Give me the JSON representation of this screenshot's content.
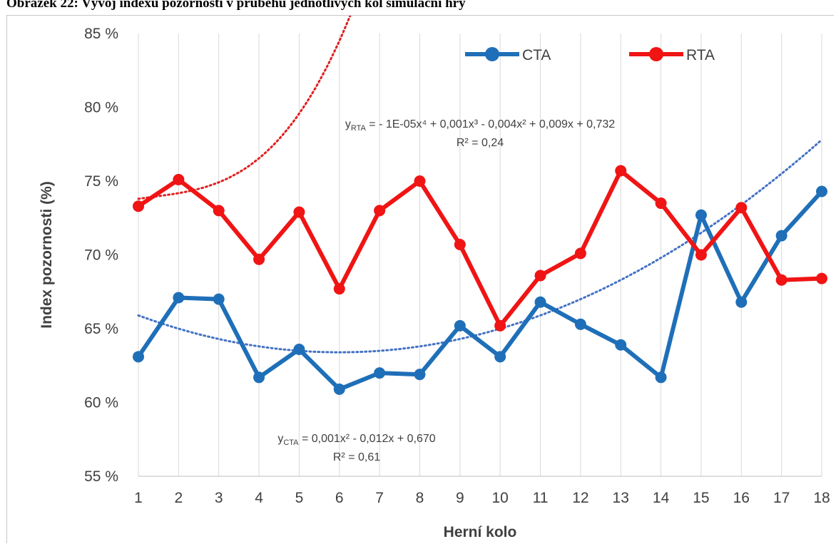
{
  "caption": "Obrázek 22: Vývoj indexu pozornosti v průběhu jednotlivých kol simulační hry",
  "chart_data": {
    "type": "line",
    "title": "",
    "xlabel": "Herní kolo",
    "ylabel": "Index pozornosti (%)",
    "categories": [
      "1",
      "2",
      "3",
      "4",
      "5",
      "6",
      "7",
      "8",
      "9",
      "10",
      "11",
      "12",
      "13",
      "14",
      "15",
      "16",
      "17",
      "18"
    ],
    "y_ticks": [
      "55 %",
      "60 %",
      "65 %",
      "70 %",
      "75 %",
      "80 %",
      "85 %"
    ],
    "ylim": [
      55,
      85
    ],
    "grid": "vertical",
    "legend_position": "top",
    "series": [
      {
        "name": "CTA",
        "color": "#1F6FB8",
        "values": [
          63.1,
          67.1,
          67.0,
          61.7,
          63.6,
          60.9,
          62.0,
          61.9,
          65.2,
          63.1,
          66.8,
          65.3,
          63.9,
          61.7,
          72.7,
          66.8,
          71.3,
          74.3
        ]
      },
      {
        "name": "RTA",
        "color": "#F01414",
        "values": [
          73.3,
          75.1,
          73.0,
          69.7,
          72.9,
          67.7,
          73.0,
          75.0,
          70.7,
          65.2,
          68.6,
          70.1,
          75.7,
          73.5,
          70.0,
          73.2,
          68.3,
          68.4
        ]
      }
    ],
    "trendlines": [
      {
        "series": "CTA",
        "color": "#4472C4",
        "style": "dotted",
        "type": "polynomial",
        "coefficients_high_to_low": [
          0.001,
          -0.012,
          0.67
        ],
        "equation_prefix": "y",
        "equation_sub": "CTA",
        "equation_body": " = 0,001x² - 0,012x + 0,670",
        "r2_label": "R² = 0,61"
      },
      {
        "series": "RTA",
        "color": "#E02020",
        "style": "dotted",
        "type": "polynomial",
        "coefficients_high_to_low": [
          -1e-05,
          0.001,
          -0.004,
          0.009,
          0.732
        ],
        "equation_prefix": "y",
        "equation_sub": "RTA",
        "equation_body": " = - 1E-05x⁴ + 0,001x³ - 0,004x² + 0,009x + 0,732",
        "r2_label": "R² = 0,24"
      }
    ]
  }
}
